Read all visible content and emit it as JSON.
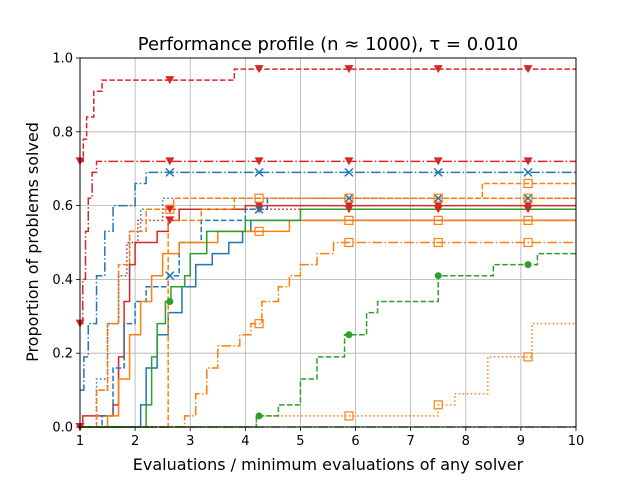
{
  "chart_data": {
    "type": "line",
    "drawstyle": "steps-post",
    "title": "Performance profile (n ≈ 1000), τ = 0.010",
    "xlabel": "Evaluations / minimum evaluations of any solver",
    "ylabel": "Proportion of problems solved",
    "xlim": [
      1,
      10
    ],
    "ylim": [
      0,
      1
    ],
    "xticks": [
      "1",
      "2",
      "3",
      "4",
      "5",
      "6",
      "7",
      "8",
      "9",
      "10"
    ],
    "yticks": [
      "0.0",
      "0.2",
      "0.4",
      "0.6",
      "0.8",
      "1.0"
    ],
    "grid": true,
    "colors": {
      "blue": "#1f77b4",
      "orange": "#ff7f0e",
      "green": "#2ca02c",
      "red": "#d62728"
    },
    "series": [
      {
        "name": "red-dashed-triangle",
        "color": "red",
        "dash": "dashed",
        "marker": "triangle",
        "points": [
          [
            1,
            0.72
          ],
          [
            1.06,
            0.78
          ],
          [
            1.12,
            0.84
          ],
          [
            1.25,
            0.91
          ],
          [
            1.4,
            0.94
          ],
          [
            3.8,
            0.97
          ],
          [
            10,
            0.97
          ]
        ],
        "marker_x": [
          1,
          2.63,
          4.25,
          5.88,
          7.5,
          9.13
        ]
      },
      {
        "name": "red-dashdot-triangle",
        "color": "red",
        "dash": "dashdot",
        "marker": "triangle",
        "points": [
          [
            1,
            0.28
          ],
          [
            1.05,
            0.4
          ],
          [
            1.1,
            0.53
          ],
          [
            1.15,
            0.62
          ],
          [
            1.22,
            0.69
          ],
          [
            1.3,
            0.72
          ],
          [
            10,
            0.72
          ]
        ],
        "marker_x": [
          1,
          2.63,
          4.25,
          5.88,
          7.5,
          9.13
        ]
      },
      {
        "name": "red-dotted-triangle",
        "color": "red",
        "dash": "dotted",
        "marker": "triangle",
        "points": [
          [
            1,
            0
          ],
          [
            1.3,
            0.1
          ],
          [
            1.5,
            0.28
          ],
          [
            1.7,
            0.41
          ],
          [
            1.85,
            0.5
          ],
          [
            2.05,
            0.56
          ],
          [
            2.5,
            0.59
          ],
          [
            10,
            0.59
          ]
        ],
        "marker_x": [
          1,
          2.63,
          4.25,
          5.88,
          7.5,
          9.13
        ]
      },
      {
        "name": "red-solid-triangle",
        "color": "red",
        "dash": "solid",
        "marker": "triangle",
        "points": [
          [
            1,
            0
          ],
          [
            1.05,
            0.03
          ],
          [
            1.6,
            0.06
          ],
          [
            1.7,
            0.19
          ],
          [
            1.8,
            0.34
          ],
          [
            1.9,
            0.44
          ],
          [
            2.0,
            0.5
          ],
          [
            2.4,
            0.53
          ],
          [
            2.6,
            0.56
          ],
          [
            2.8,
            0.59
          ],
          [
            4.0,
            0.6
          ],
          [
            10,
            0.6
          ]
        ],
        "marker_x": [
          1,
          2.63,
          4.25,
          5.88,
          7.5,
          9.13
        ]
      },
      {
        "name": "blue-dashdot-x",
        "color": "blue",
        "dash": "dashdot",
        "marker": "x",
        "points": [
          [
            1,
            0.1
          ],
          [
            1.07,
            0.19
          ],
          [
            1.15,
            0.28
          ],
          [
            1.3,
            0.41
          ],
          [
            1.45,
            0.53
          ],
          [
            1.6,
            0.6
          ],
          [
            2.0,
            0.66
          ],
          [
            2.2,
            0.69
          ],
          [
            10,
            0.69
          ]
        ],
        "marker_x": [
          2.63,
          4.25,
          5.88,
          7.5,
          9.13
        ]
      },
      {
        "name": "blue-dashed-x",
        "color": "blue",
        "dash": "dashed",
        "marker": "x",
        "points": [
          [
            1,
            0
          ],
          [
            1.4,
            0.03
          ],
          [
            1.6,
            0.16
          ],
          [
            1.8,
            0.28
          ],
          [
            2.0,
            0.34
          ],
          [
            2.2,
            0.38
          ],
          [
            2.6,
            0.41
          ],
          [
            2.8,
            0.5
          ],
          [
            3.2,
            0.56
          ],
          [
            4.0,
            0.59
          ],
          [
            4.4,
            0.62
          ],
          [
            10,
            0.62
          ]
        ],
        "marker_x": [
          2.63,
          4.25,
          5.88,
          7.5,
          9.13
        ]
      },
      {
        "name": "blue-dotted",
        "color": "blue",
        "dash": "dotted",
        "marker": "none",
        "points": [
          [
            1,
            0
          ],
          [
            1.3,
            0.13
          ],
          [
            1.5,
            0.28
          ],
          [
            1.7,
            0.41
          ],
          [
            1.9,
            0.53
          ],
          [
            2.1,
            0.59
          ],
          [
            2.5,
            0.62
          ],
          [
            10,
            0.62
          ]
        ],
        "marker_x": []
      },
      {
        "name": "blue-solid",
        "color": "blue",
        "dash": "solid",
        "marker": "none",
        "points": [
          [
            1,
            0
          ],
          [
            2.1,
            0.06
          ],
          [
            2.2,
            0.16
          ],
          [
            2.4,
            0.25
          ],
          [
            2.6,
            0.31
          ],
          [
            2.85,
            0.38
          ],
          [
            3.1,
            0.44
          ],
          [
            3.4,
            0.47
          ],
          [
            3.7,
            0.5
          ],
          [
            3.95,
            0.53
          ],
          [
            4.1,
            0.56
          ],
          [
            10,
            0.56
          ]
        ],
        "marker_x": []
      },
      {
        "name": "orange-dotted-square",
        "color": "orange",
        "dash": "dotted",
        "marker": "square",
        "points": [
          [
            1,
            0
          ],
          [
            4.2,
            0.03
          ],
          [
            7.5,
            0.06
          ],
          [
            7.8,
            0.09
          ],
          [
            8.4,
            0.19
          ],
          [
            9.2,
            0.28
          ],
          [
            10,
            0.28
          ]
        ],
        "marker_x": [
          5.88,
          7.5,
          9.13
        ]
      },
      {
        "name": "orange-dashdot-square",
        "color": "orange",
        "dash": "dashdot",
        "marker": "square",
        "points": [
          [
            1,
            0
          ],
          [
            2.9,
            0.03
          ],
          [
            3.1,
            0.09
          ],
          [
            3.3,
            0.16
          ],
          [
            3.5,
            0.22
          ],
          [
            3.9,
            0.25
          ],
          [
            4.1,
            0.28
          ],
          [
            4.3,
            0.34
          ],
          [
            4.6,
            0.38
          ],
          [
            4.8,
            0.41
          ],
          [
            5.0,
            0.44
          ],
          [
            5.3,
            0.47
          ],
          [
            5.6,
            0.5
          ],
          [
            10,
            0.5
          ]
        ],
        "marker_x": [
          4.25,
          5.88,
          7.5,
          9.13
        ]
      },
      {
        "name": "orange-dashed-square",
        "color": "orange",
        "dash": "dashed",
        "marker": "square",
        "points": [
          [
            1,
            0
          ],
          [
            1.3,
            0.1
          ],
          [
            1.5,
            0.28
          ],
          [
            1.7,
            0.44
          ],
          [
            1.9,
            0.53
          ],
          [
            2.2,
            0.59
          ],
          [
            2.7,
            0.62
          ],
          [
            10,
            0.62
          ]
        ],
        "marker_x": [
          2.63,
          4.25,
          5.88,
          7.5,
          9.13
        ]
      },
      {
        "name": "orange-solid-square",
        "color": "orange",
        "dash": "solid",
        "marker": "square",
        "points": [
          [
            1,
            0
          ],
          [
            1.5,
            0.03
          ],
          [
            1.7,
            0.13
          ],
          [
            1.9,
            0.25
          ],
          [
            2.1,
            0.34
          ],
          [
            2.3,
            0.41
          ],
          [
            2.5,
            0.47
          ],
          [
            2.8,
            0.5
          ],
          [
            3.5,
            0.53
          ],
          [
            4.8,
            0.56
          ],
          [
            10,
            0.56
          ]
        ],
        "marker_x": [
          4.25,
          5.88,
          7.5,
          9.13
        ]
      },
      {
        "name": "orange-dashed-2-square",
        "color": "orange",
        "dash": "dashed",
        "marker": "square",
        "points": [
          [
            1,
            0
          ],
          [
            2.6,
            0.56
          ],
          [
            3.2,
            0.59
          ],
          [
            3.8,
            0.62
          ],
          [
            5.0,
            0.62
          ],
          [
            8.3,
            0.66
          ],
          [
            10,
            0.66
          ]
        ],
        "marker_x": [
          9.13
        ]
      },
      {
        "name": "green-dashed-circle",
        "color": "green",
        "dash": "dashed",
        "marker": "circle",
        "points": [
          [
            1,
            0
          ],
          [
            4.2,
            0.03
          ],
          [
            4.6,
            0.06
          ],
          [
            5.0,
            0.13
          ],
          [
            5.3,
            0.19
          ],
          [
            5.8,
            0.25
          ],
          [
            6.2,
            0.31
          ],
          [
            6.4,
            0.34
          ],
          [
            7.5,
            0.41
          ],
          [
            8.5,
            0.44
          ],
          [
            9.3,
            0.47
          ],
          [
            10,
            0.47
          ]
        ],
        "marker_x": [
          4.25,
          5.88,
          7.5,
          9.13
        ]
      },
      {
        "name": "green-solid-circle",
        "color": "green",
        "dash": "solid",
        "marker": "circle",
        "points": [
          [
            1,
            0
          ],
          [
            2.2,
            0.06
          ],
          [
            2.3,
            0.19
          ],
          [
            2.4,
            0.28
          ],
          [
            2.55,
            0.34
          ],
          [
            2.65,
            0.38
          ],
          [
            2.9,
            0.41
          ],
          [
            3.0,
            0.47
          ],
          [
            3.3,
            0.53
          ],
          [
            4.0,
            0.56
          ],
          [
            5.0,
            0.59
          ],
          [
            10,
            0.59
          ]
        ],
        "marker_x": [
          2.63
        ]
      },
      {
        "name": "green-dashdot",
        "color": "green",
        "dash": "dashdot",
        "marker": "none",
        "points": [
          [
            1,
            0
          ],
          [
            10,
            0
          ]
        ],
        "marker_x": []
      }
    ]
  }
}
